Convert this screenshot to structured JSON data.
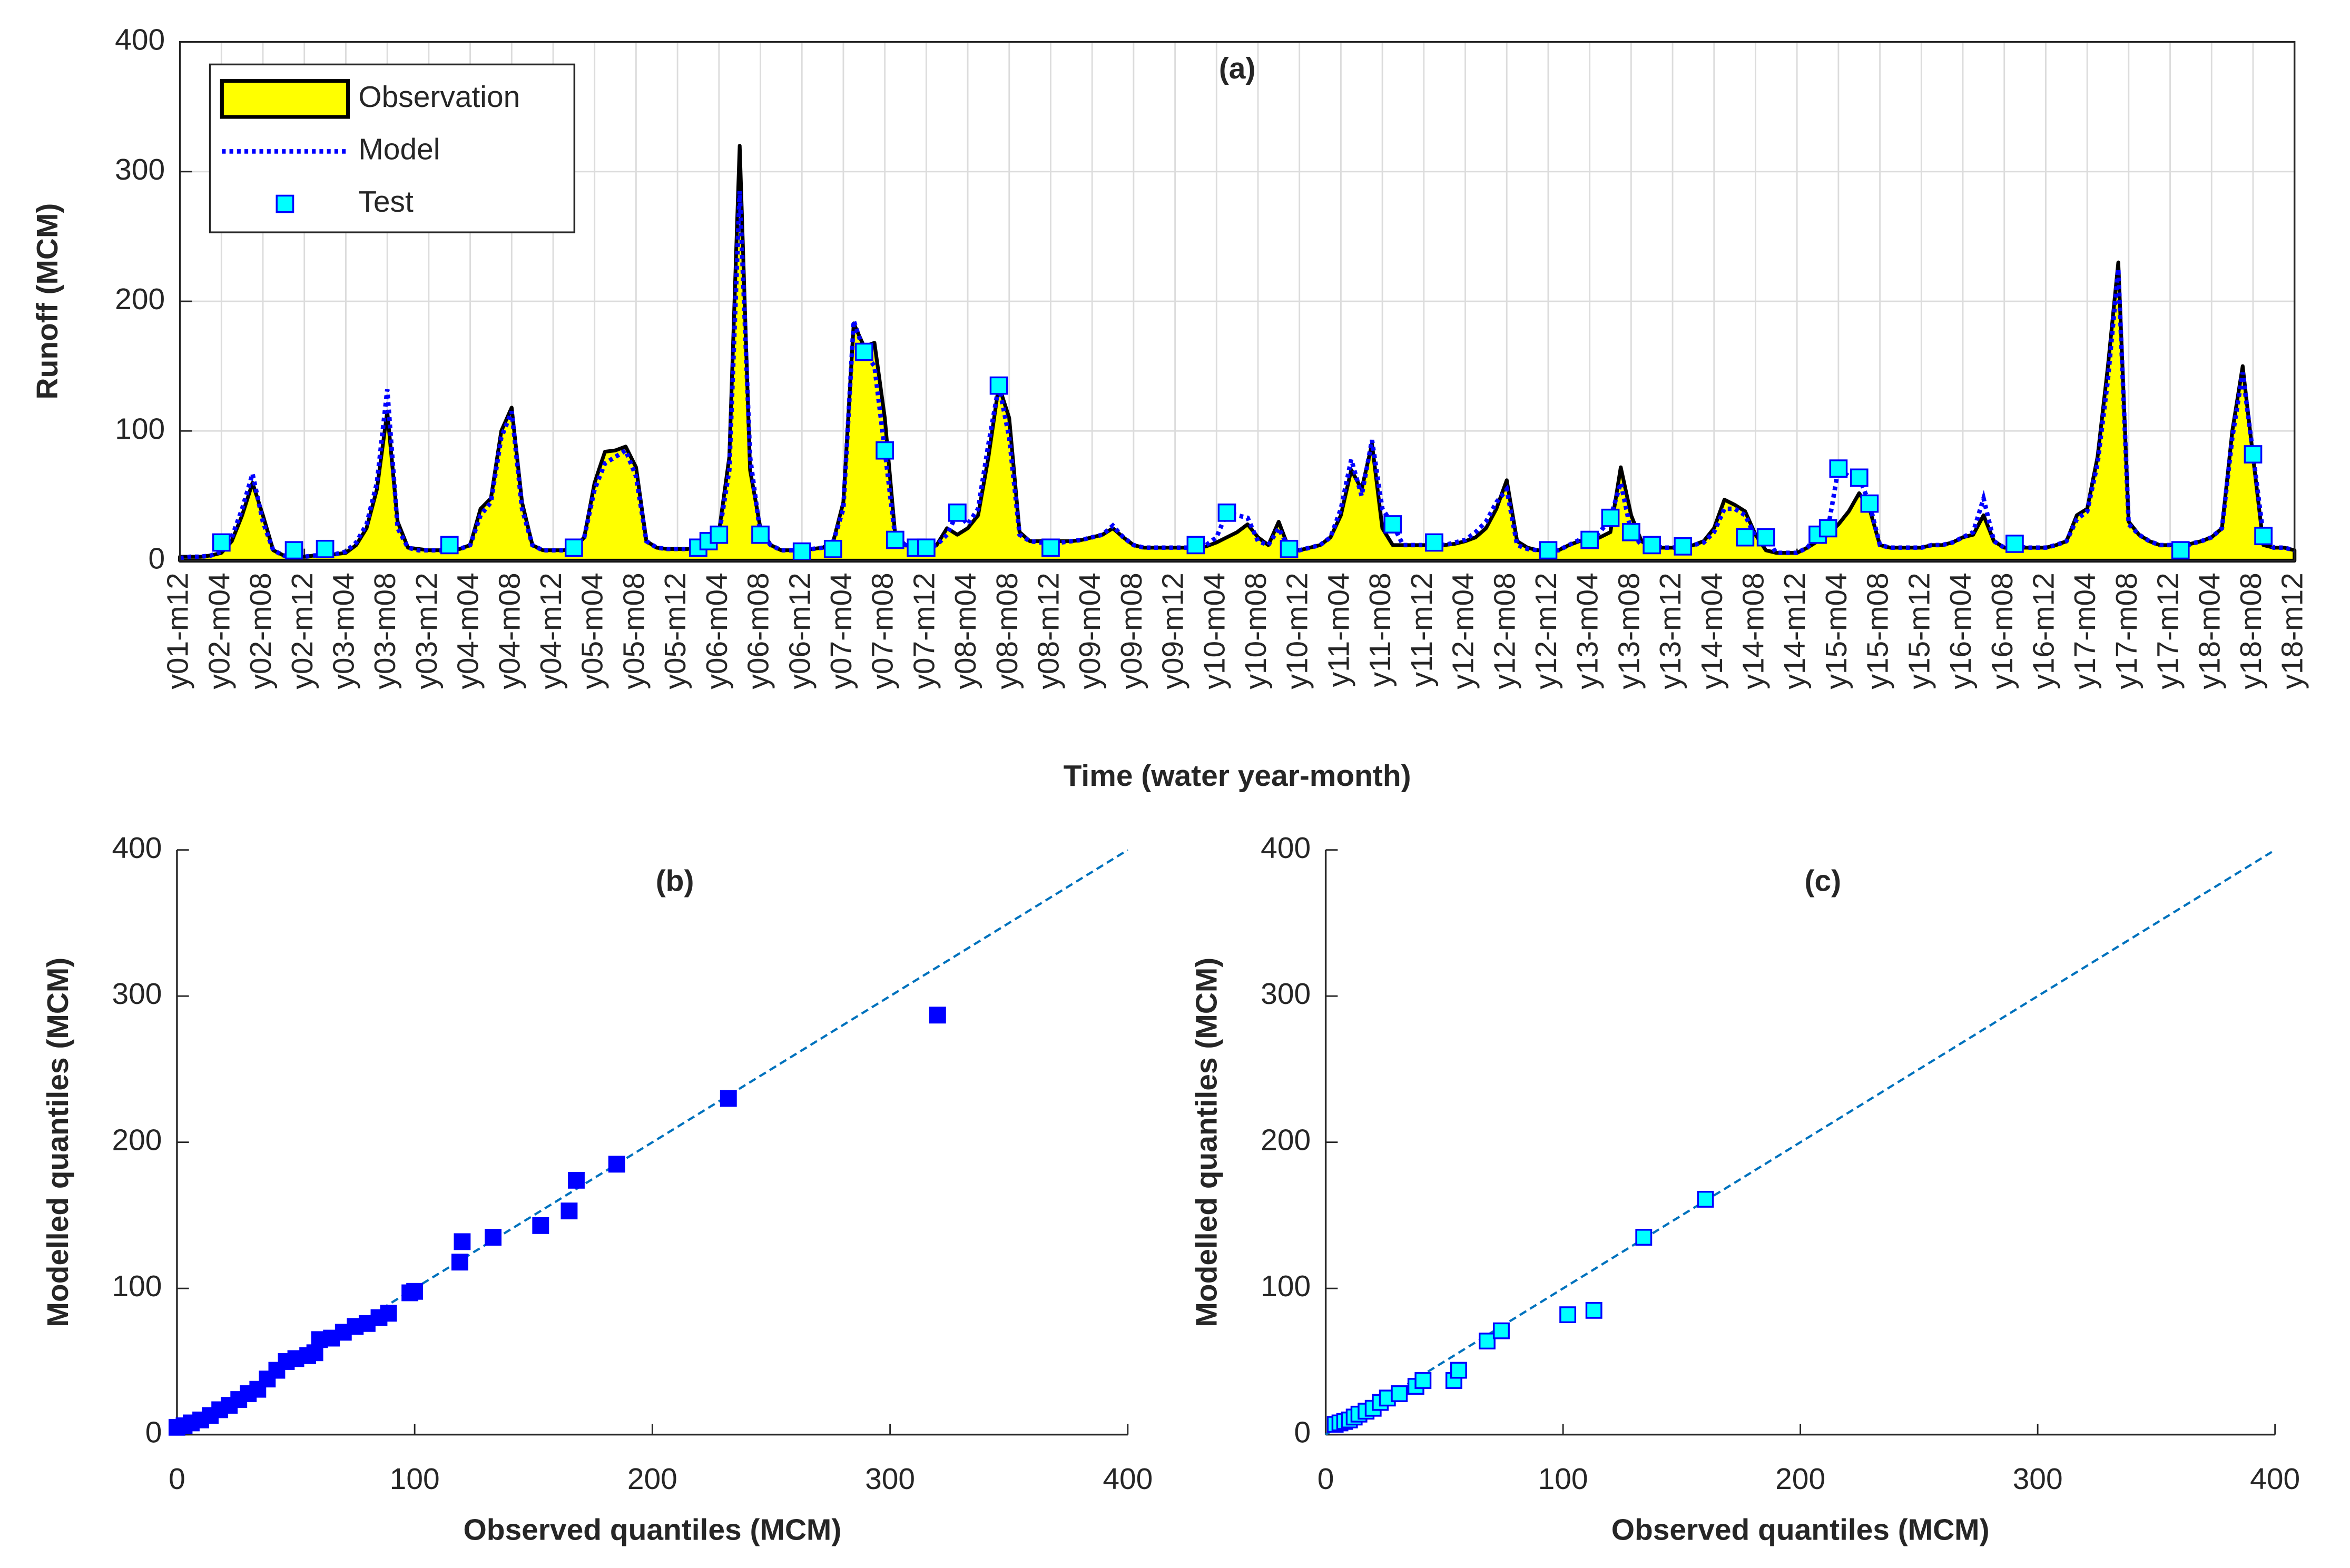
{
  "chart_data": [
    {
      "type": "area",
      "title": "(a)",
      "xlabel": "Time (water year-month)",
      "ylabel": "Runoff (MCM)",
      "ylim": [
        0,
        400
      ],
      "yticks": [
        0,
        100,
        200,
        300,
        400
      ],
      "grid": true,
      "legend": "upper left",
      "categories": [
        "y01-m12",
        null,
        null,
        null,
        "y02-m04",
        null,
        null,
        null,
        "y02-m08",
        null,
        null,
        null,
        "y02-m12",
        null,
        null,
        null,
        "y03-m04",
        null,
        null,
        null,
        "y03-m08",
        null,
        null,
        null,
        "y03-m12",
        null,
        null,
        null,
        "y04-m04",
        null,
        null,
        null,
        "y04-m08",
        null,
        null,
        null,
        "y04-m12",
        null,
        null,
        null,
        "y05-m04",
        null,
        null,
        null,
        "y05-m08",
        null,
        null,
        null,
        "y05-m12",
        null,
        null,
        null,
        "y06-m04",
        null,
        null,
        null,
        "y06-m08",
        null,
        null,
        null,
        "y06-m12",
        null,
        null,
        null,
        "y07-m04",
        null,
        null,
        null,
        "y07-m08",
        null,
        null,
        null,
        "y07-m12",
        null,
        null,
        null,
        "y08-m04",
        null,
        null,
        null,
        "y08-m08",
        null,
        null,
        null,
        "y08-m12",
        null,
        null,
        null,
        "y09-m04",
        null,
        null,
        null,
        "y09-m08",
        null,
        null,
        null,
        "y09-m12",
        null,
        null,
        null,
        "y10-m04",
        null,
        null,
        null,
        "y10-m08",
        null,
        null,
        null,
        "y10-m12",
        null,
        null,
        null,
        "y11-m04",
        null,
        null,
        null,
        "y11-m08",
        null,
        null,
        null,
        "y11-m12",
        null,
        null,
        null,
        "y12-m04",
        null,
        null,
        null,
        "y12-m08",
        null,
        null,
        null,
        "y12-m12",
        null,
        null,
        null,
        "y13-m04",
        null,
        null,
        null,
        "y13-m08",
        null,
        null,
        null,
        "y13-m12",
        null,
        null,
        null,
        "y14-m04",
        null,
        null,
        null,
        "y14-m08",
        null,
        null,
        null,
        "y14-m12",
        null,
        null,
        null,
        "y15-m04",
        null,
        null,
        null,
        "y15-m08",
        null,
        null,
        null,
        "y15-m12",
        null,
        null,
        null,
        "y16-m04",
        null,
        null,
        null,
        "y16-m08",
        null,
        null,
        null,
        "y16-m12",
        null,
        null,
        null,
        "y17-m04",
        null,
        null,
        null,
        "y17-m08",
        null,
        null,
        null,
        "y17-m12",
        null,
        null,
        null,
        "y18-m04",
        null,
        null,
        null,
        "y18-m08",
        null,
        null,
        null,
        "y18-m12"
      ],
      "series": [
        {
          "name": "Observation",
          "style": "area",
          "color": "#ffff00",
          "edgecolor": "#000000",
          "values": [
            3,
            3,
            3,
            4,
            6,
            15,
            35,
            60,
            35,
            8,
            4,
            3,
            3,
            4,
            4,
            5,
            6,
            12,
            25,
            55,
            115,
            30,
            10,
            9,
            8,
            8,
            8,
            9,
            12,
            40,
            48,
            100,
            118,
            45,
            12,
            8,
            8,
            8,
            9,
            18,
            60,
            84,
            85,
            88,
            72,
            15,
            10,
            9,
            9,
            9,
            10,
            12,
            22,
            80,
            320,
            70,
            25,
            12,
            8,
            8,
            8,
            9,
            10,
            14,
            45,
            183,
            165,
            168,
            110,
            20,
            12,
            10,
            10,
            12,
            25,
            20,
            25,
            35,
            80,
            135,
            110,
            22,
            15,
            15,
            15,
            15,
            15,
            16,
            18,
            20,
            25,
            18,
            12,
            10,
            10,
            10,
            10,
            10,
            10,
            11,
            14,
            18,
            22,
            28,
            18,
            12,
            30,
            9,
            8,
            10,
            12,
            18,
            35,
            70,
            55,
            90,
            25,
            12,
            12,
            12,
            12,
            12,
            12,
            13,
            15,
            18,
            25,
            40,
            62,
            15,
            10,
            8,
            8,
            8,
            12,
            15,
            15,
            18,
            22,
            72,
            35,
            15,
            10,
            10,
            10,
            10,
            12,
            15,
            25,
            47,
            43,
            38,
            20,
            8,
            6,
            6,
            6,
            10,
            15,
            20,
            28,
            38,
            52,
            40,
            12,
            10,
            10,
            10,
            10,
            12,
            12,
            14,
            18,
            20,
            35,
            15,
            10,
            10,
            10,
            10,
            10,
            12,
            15,
            35,
            40,
            80,
            150,
            230,
            30,
            20,
            15,
            12,
            12,
            12,
            13,
            15,
            18,
            25,
            100,
            150,
            80,
            12,
            10,
            10,
            8
          ]
        },
        {
          "name": "Model",
          "style": "dotted",
          "color": "#0000ff",
          "values": [
            2,
            3,
            3,
            4,
            7,
            18,
            40,
            67,
            30,
            8,
            4,
            3,
            3,
            4,
            4,
            5,
            7,
            14,
            28,
            60,
            132,
            25,
            10,
            8,
            8,
            8,
            8,
            9,
            12,
            35,
            45,
            95,
            115,
            40,
            12,
            8,
            8,
            8,
            9,
            18,
            55,
            75,
            80,
            85,
            65,
            15,
            10,
            9,
            9,
            9,
            10,
            15,
            20,
            70,
            285,
            80,
            20,
            12,
            8,
            8,
            8,
            9,
            10,
            14,
            40,
            185,
            161,
            150,
            85,
            18,
            12,
            10,
            10,
            12,
            20,
            37,
            28,
            40,
            90,
            135,
            95,
            20,
            15,
            14,
            15,
            14,
            15,
            16,
            18,
            20,
            27,
            18,
            12,
            10,
            10,
            10,
            10,
            10,
            10,
            12,
            18,
            37,
            35,
            33,
            15,
            12,
            25,
            9,
            8,
            10,
            12,
            18,
            40,
            78,
            50,
            93,
            40,
            28,
            12,
            12,
            12,
            14,
            12,
            14,
            16,
            22,
            30,
            45,
            55,
            12,
            9,
            8,
            8,
            8,
            12,
            16,
            16,
            22,
            33,
            60,
            22,
            12,
            12,
            10,
            10,
            11,
            12,
            14,
            22,
            40,
            40,
            35,
            18,
            18,
            6,
            6,
            6,
            10,
            20,
            25,
            71,
            65,
            64,
            44,
            12,
            10,
            10,
            10,
            10,
            12,
            12,
            14,
            18,
            22,
            48,
            15,
            10,
            13,
            10,
            10,
            10,
            12,
            15,
            32,
            38,
            75,
            140,
            225,
            28,
            20,
            15,
            12,
            12,
            8,
            13,
            15,
            18,
            25,
            95,
            145,
            82,
            19,
            10,
            10,
            8
          ]
        },
        {
          "name": "Test",
          "style": "markers",
          "color": "#00ffff",
          "edgecolor": "#0000ff",
          "values": [
            null,
            null,
            null,
            null,
            14,
            null,
            null,
            null,
            null,
            null,
            null,
            8,
            null,
            null,
            9,
            null,
            null,
            null,
            null,
            null,
            null,
            null,
            null,
            null,
            null,
            null,
            12,
            null,
            null,
            null,
            null,
            null,
            null,
            null,
            null,
            null,
            null,
            null,
            10,
            null,
            null,
            null,
            null,
            null,
            null,
            null,
            null,
            null,
            null,
            null,
            10,
            15,
            20,
            null,
            null,
            null,
            20,
            null,
            null,
            null,
            7,
            null,
            null,
            9,
            null,
            null,
            161,
            null,
            85,
            16,
            null,
            10,
            10,
            null,
            null,
            37,
            null,
            null,
            null,
            135,
            null,
            null,
            null,
            null,
            10,
            null,
            null,
            null,
            null,
            null,
            null,
            null,
            null,
            null,
            null,
            null,
            null,
            null,
            12,
            null,
            null,
            37,
            null,
            null,
            null,
            null,
            null,
            9,
            null,
            null,
            null,
            null,
            null,
            null,
            null,
            null,
            null,
            28,
            null,
            null,
            null,
            14,
            null,
            null,
            null,
            null,
            null,
            null,
            null,
            null,
            null,
            null,
            8,
            null,
            null,
            null,
            16,
            null,
            33,
            null,
            22,
            null,
            12,
            null,
            null,
            11,
            null,
            null,
            null,
            null,
            null,
            18,
            null,
            18,
            null,
            null,
            null,
            null,
            20,
            25,
            71,
            null,
            64,
            44,
            null,
            null,
            null,
            null,
            null,
            null,
            null,
            null,
            null,
            null,
            null,
            null,
            null,
            13,
            null,
            null,
            null,
            null,
            null,
            null,
            null,
            null,
            null,
            null,
            null,
            null,
            null,
            null,
            null,
            8,
            null,
            null,
            null,
            null,
            null,
            null,
            82,
            19,
            null,
            null,
            null
          ]
        }
      ]
    },
    {
      "type": "scatter",
      "title": "(b)",
      "xlabel": "Observed quantiles (MCM)",
      "ylabel": "Modelled quantiles (MCM)",
      "xlim": [
        0,
        400
      ],
      "ylim": [
        0,
        400
      ],
      "xticks": [
        0,
        100,
        200,
        300,
        400
      ],
      "yticks": [
        0,
        100,
        200,
        300,
        400
      ],
      "color": "#0000ff",
      "edgecolor": "#0000ff",
      "reference_line_color": "#0072bd",
      "x": [
        0,
        3,
        6,
        10,
        14,
        18,
        22,
        26,
        30,
        34,
        38,
        42,
        46,
        50,
        55,
        58,
        60,
        65,
        70,
        75,
        80,
        85,
        89,
        98,
        100,
        119,
        120,
        133,
        153,
        165,
        168,
        185,
        232,
        320
      ],
      "values": [
        5,
        6,
        8,
        10,
        13,
        17,
        20,
        24,
        28,
        31,
        38,
        44,
        50,
        52,
        54,
        56,
        65,
        66,
        70,
        74,
        76,
        80,
        83,
        97,
        98,
        118,
        132,
        135,
        143,
        153,
        174,
        185,
        230,
        287
      ]
    },
    {
      "type": "scatter",
      "title": "(c)",
      "xlabel": "Observed quantiles (MCM)",
      "ylabel": "Modelled quantiles (MCM)",
      "xlim": [
        0,
        400
      ],
      "ylim": [
        0,
        400
      ],
      "xticks": [
        0,
        100,
        200,
        300,
        400
      ],
      "yticks": [
        0,
        100,
        200,
        300,
        400
      ],
      "color": "#00ffff",
      "edgecolor": "#0000ff",
      "reference_line_color": "#0072bd",
      "x": [
        4,
        6,
        8,
        10,
        12,
        14,
        17,
        20,
        23,
        26,
        31,
        38,
        41,
        54,
        56,
        68,
        74,
        102,
        113,
        134,
        160
      ],
      "values": [
        7,
        8,
        9,
        10,
        12,
        14,
        16,
        18,
        22,
        25,
        28,
        33,
        37,
        37,
        44,
        64,
        71,
        82,
        85,
        135,
        161
      ]
    }
  ]
}
